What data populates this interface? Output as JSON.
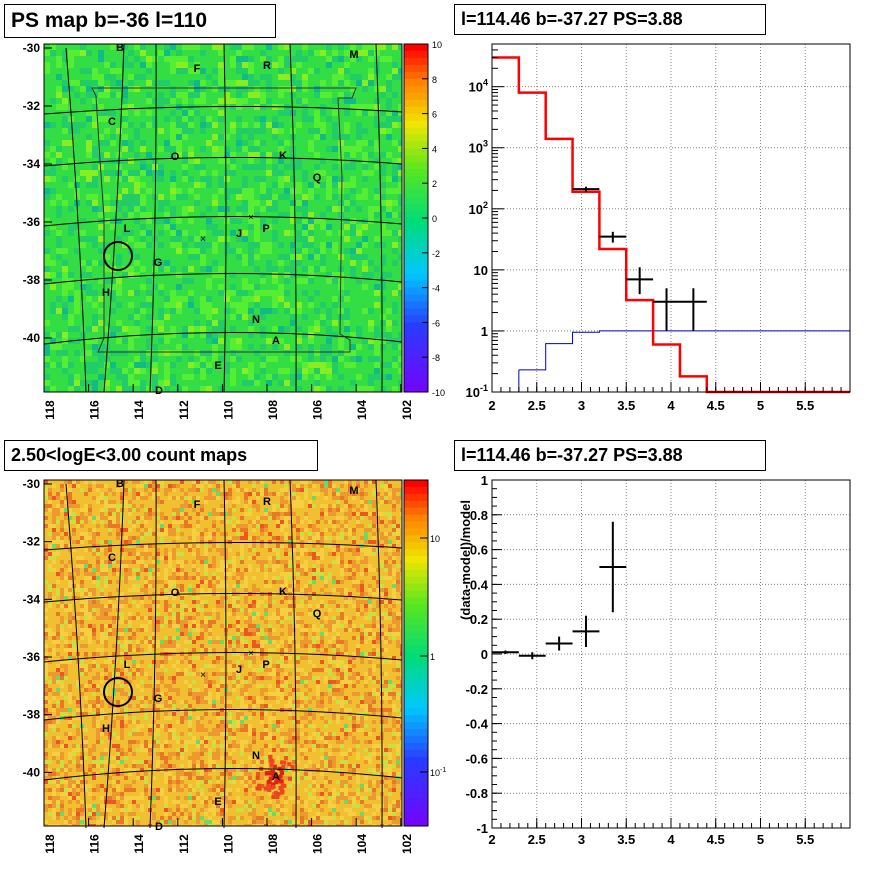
{
  "titles": {
    "map_top": "PS map b=-36 l=110",
    "map_bottom": "2.50<logE<3.00 count maps",
    "spec_top": "l=114.46 b=-37.27 PS=3.88",
    "spec_bottom": "l=114.46 b=-37.27 PS=3.88"
  },
  "map_axes": {
    "y_ticks": [
      "-30",
      "-32",
      "-34",
      "-36",
      "-38",
      "-40"
    ],
    "x_ticks": [
      "118",
      "116",
      "114",
      "112",
      "110",
      "108",
      "106",
      "104",
      "102"
    ]
  },
  "source_labels": [
    "B",
    "M",
    "F",
    "R",
    "C",
    "O",
    "K",
    "Q",
    "L",
    "J",
    "P",
    "G",
    "H",
    "N",
    "A",
    "E",
    "D"
  ],
  "colorbar_top": {
    "ticks": [
      "10",
      "8",
      "6",
      "4",
      "2",
      "0",
      "-2",
      "-4",
      "-6",
      "-8",
      "-10"
    ],
    "range": [
      -10,
      10
    ]
  },
  "colorbar_bottom": {
    "ticks": [
      "10",
      "1",
      "10-1"
    ],
    "scale": "log"
  },
  "colors": {
    "model_line": "#ff0000",
    "background_line": "#0000cc",
    "data_points": "#000000",
    "map_top_base": "#33dd44",
    "map_bottom_base": "#f0c030"
  },
  "chart_data": [
    {
      "type": "line",
      "title": "l=114.46 b=-37.27 PS=3.88",
      "xlim": [
        2,
        6
      ],
      "ylim": [
        0.1,
        50000
      ],
      "yscale": "log",
      "x_ticks": [
        "2",
        "2.5",
        "3",
        "3.5",
        "4",
        "4.5",
        "5",
        "5.5"
      ],
      "y_ticks": [
        "10-1",
        "1",
        "10",
        "102",
        "103",
        "104"
      ],
      "grid": true,
      "series": [
        {
          "kind": "step",
          "color": "#ff0000",
          "edges": [
            2.0,
            2.3,
            2.6,
            2.9,
            3.2,
            3.5,
            3.8,
            4.1,
            4.4,
            6.0
          ],
          "values": [
            30000,
            8000,
            1400,
            190,
            22,
            3.2,
            0.6,
            0.18,
            0.1
          ]
        },
        {
          "kind": "step",
          "color": "#0000cc",
          "edges": [
            2.3,
            2.6,
            2.9,
            3.2,
            6.0
          ],
          "values": [
            0.23,
            0.62,
            0.95,
            1.0
          ]
        },
        {
          "kind": "errorbar",
          "color": "#000000",
          "x": [
            3.05,
            3.35,
            3.65,
            3.95,
            4.25
          ],
          "xerr": [
            0.15,
            0.15,
            0.15,
            0.15,
            0.15
          ],
          "y": [
            210,
            35,
            7,
            3,
            3
          ],
          "ylow": [
            190,
            28,
            4,
            1,
            1
          ],
          "yhigh": [
            230,
            42,
            11,
            5,
            5
          ]
        }
      ]
    },
    {
      "type": "scatter",
      "title": "l=114.46 b=-37.27 PS=3.88",
      "ylabel": "(data-model)/model",
      "xlim": [
        2,
        6
      ],
      "ylim": [
        -1,
        1
      ],
      "x_ticks": [
        "2",
        "2.5",
        "3",
        "3.5",
        "4",
        "4.5",
        "5",
        "5.5"
      ],
      "y_ticks": [
        "1",
        "0.8",
        "0.6",
        "0.4",
        "0.2",
        "0",
        "-0.2",
        "-0.4",
        "-0.6",
        "-0.8",
        "-1"
      ],
      "grid": true,
      "series": [
        {
          "kind": "errorbar",
          "color": "#000000",
          "x": [
            2.15,
            2.45,
            2.75,
            3.05,
            3.35
          ],
          "xerr": [
            0.15,
            0.15,
            0.15,
            0.15,
            0.15
          ],
          "y": [
            0.01,
            -0.01,
            0.06,
            0.13,
            0.5
          ],
          "yerr": [
            0.01,
            0.02,
            0.04,
            0.09,
            0.26
          ]
        }
      ]
    }
  ]
}
